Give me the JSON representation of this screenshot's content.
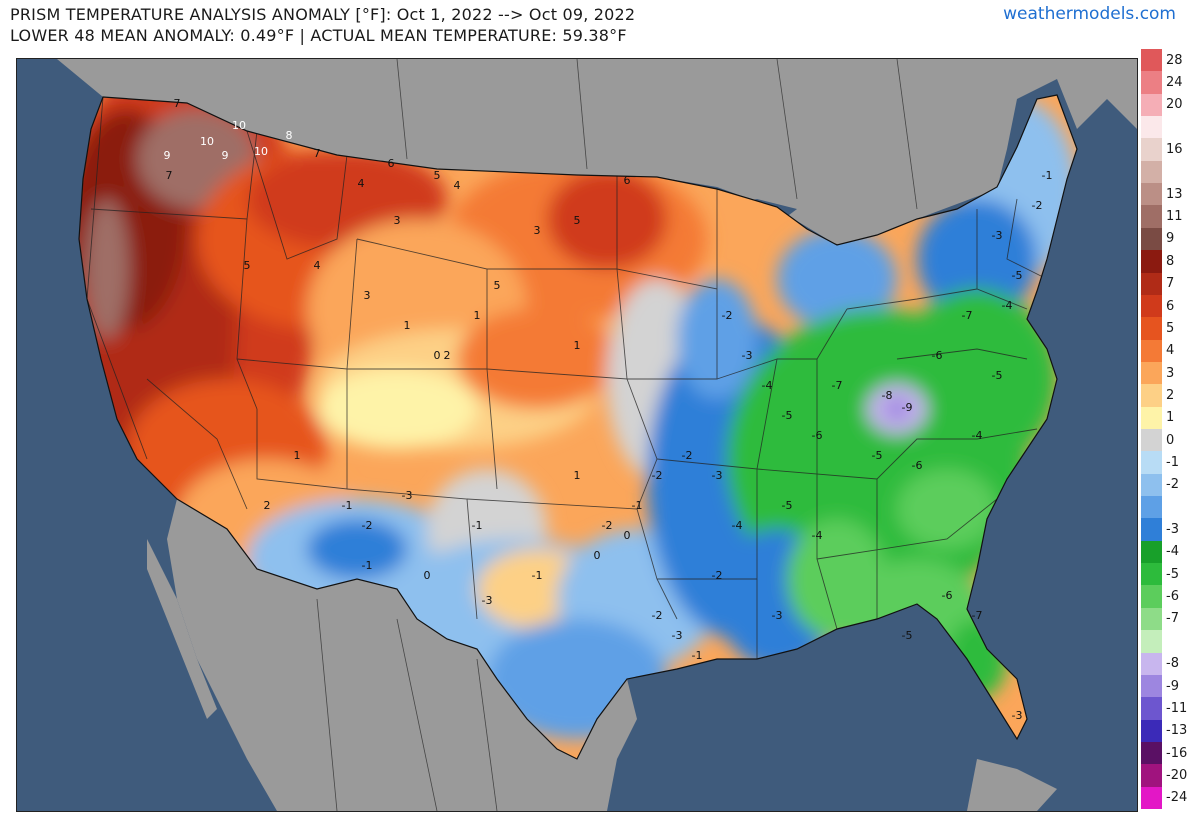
{
  "header": {
    "title_line_1": "PRISM TEMPERATURE ANALYSIS ANOMALY [°F]: Oct 1, 2022 --> Oct 09, 2022",
    "title_line_2": "LOWER 48 MEAN ANOMALY: 0.49°F | ACTUAL MEAN TEMPERATURE: 59.38°F",
    "site": "weathermodels.com"
  },
  "colors": {
    "ocean": "#3f5b7c",
    "land_outside": "#9a9a9a",
    "lakes": "#3f5b7c"
  },
  "legend": [
    {
      "label": "28",
      "color": "#e0585a"
    },
    {
      "label": "24",
      "color": "#ec7f84"
    },
    {
      "label": "20",
      "color": "#f5aeb6"
    },
    {
      "label": "",
      "color": "#fbe8ea"
    },
    {
      "label": "16",
      "color": "#e9d2cc"
    },
    {
      "label": "",
      "color": "#d3b0a7"
    },
    {
      "label": "13",
      "color": "#bb8f86"
    },
    {
      "label": "11",
      "color": "#9f6e66"
    },
    {
      "label": "9",
      "color": "#7a4b44"
    },
    {
      "label": "8",
      "color": "#8b1a10"
    },
    {
      "label": "7",
      "color": "#b02b17"
    },
    {
      "label": "6",
      "color": "#d03a1b"
    },
    {
      "label": "5",
      "color": "#e6541f"
    },
    {
      "label": "4",
      "color": "#f47a36"
    },
    {
      "label": "3",
      "color": "#fba65a"
    },
    {
      "label": "2",
      "color": "#fdd086"
    },
    {
      "label": "1",
      "color": "#fef3a8"
    },
    {
      "label": "0",
      "color": "#d3d3d3"
    },
    {
      "label": "-1",
      "color": "#b8dcf5"
    },
    {
      "label": "-2",
      "color": "#8ec0ee"
    },
    {
      "label": "",
      "color": "#5ea0e6"
    },
    {
      "label": "-3",
      "color": "#2f7fd8"
    },
    {
      "label": "-4",
      "color": "#18a02a"
    },
    {
      "label": "-5",
      "color": "#2dbb3c"
    },
    {
      "label": "-6",
      "color": "#5ccd5c"
    },
    {
      "label": "-7",
      "color": "#8edc88"
    },
    {
      "label": "",
      "color": "#c4eebb"
    },
    {
      "label": "-8",
      "color": "#c8b6ee"
    },
    {
      "label": "-9",
      "color": "#9d86e0"
    },
    {
      "label": "-11",
      "color": "#6d56cf"
    },
    {
      "label": "-13",
      "color": "#3b2ab8"
    },
    {
      "label": "-16",
      "color": "#5a1064"
    },
    {
      "label": "-20",
      "color": "#a0137e"
    },
    {
      "label": "-24",
      "color": "#e317c6"
    }
  ],
  "anomaly_labels": [
    {
      "v": "7"
    },
    {
      "v": "10"
    },
    {
      "v": "8"
    },
    {
      "v": "7"
    },
    {
      "v": "9"
    },
    {
      "v": "10"
    },
    {
      "v": "10"
    },
    {
      "v": "9"
    },
    {
      "v": "7"
    },
    {
      "v": "6"
    },
    {
      "v": "4"
    },
    {
      "v": "5"
    },
    {
      "v": "4"
    },
    {
      "v": "3"
    },
    {
      "v": "6"
    },
    {
      "v": "3"
    },
    {
      "v": "5"
    },
    {
      "v": "5"
    },
    {
      "v": "4"
    },
    {
      "v": "3"
    },
    {
      "v": "5"
    },
    {
      "v": "2"
    },
    {
      "v": "1"
    },
    {
      "v": "1"
    },
    {
      "v": "0"
    },
    {
      "v": "1"
    },
    {
      "v": "-1"
    },
    {
      "v": "-2"
    },
    {
      "v": "-3"
    },
    {
      "v": "-1"
    },
    {
      "v": "-2"
    },
    {
      "v": "0"
    },
    {
      "v": "-1"
    },
    {
      "v": "-3"
    },
    {
      "v": "-2"
    },
    {
      "v": "-3"
    },
    {
      "v": "-4"
    },
    {
      "v": "-5"
    },
    {
      "v": "-6"
    },
    {
      "v": "-7"
    },
    {
      "v": "-8"
    },
    {
      "v": "-9"
    },
    {
      "v": "-5"
    },
    {
      "v": "-6"
    },
    {
      "v": "-4"
    },
    {
      "v": "-5"
    },
    {
      "v": "-6"
    },
    {
      "v": "-7"
    },
    {
      "v": "-4"
    },
    {
      "v": "-5"
    },
    {
      "v": "-2"
    },
    {
      "v": "-1"
    },
    {
      "v": "-3"
    },
    {
      "v": "-2"
    },
    {
      "v": "-1"
    },
    {
      "v": "-2"
    },
    {
      "v": "-3"
    },
    {
      "v": "-4"
    },
    {
      "v": "-5"
    },
    {
      "v": "-4"
    },
    {
      "v": "-3"
    },
    {
      "v": "-2"
    },
    {
      "v": "-1"
    },
    {
      "v": "0"
    },
    {
      "v": "-2"
    },
    {
      "v": "-3"
    },
    {
      "v": "2"
    },
    {
      "v": "1"
    },
    {
      "v": "-1"
    },
    {
      "v": "0"
    },
    {
      "v": "1"
    },
    {
      "v": "-6"
    },
    {
      "v": "-7"
    },
    {
      "v": "-5"
    },
    {
      "v": "-3"
    }
  ]
}
